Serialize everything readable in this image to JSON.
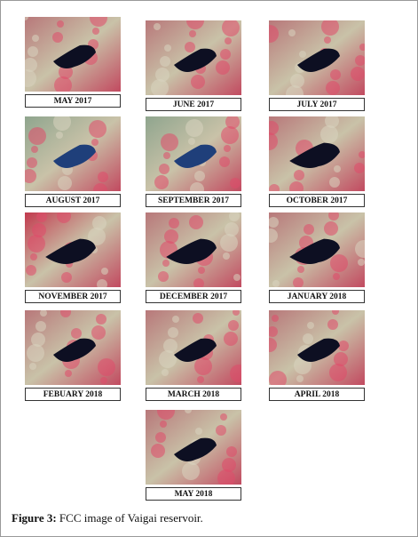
{
  "figure": {
    "panels": [
      {
        "label": "MAY 2017"
      },
      {
        "label": "JUNE 2017"
      },
      {
        "label": "JULY 2017"
      },
      {
        "label": "AUGUST 2017"
      },
      {
        "label": "SEPTEMBER 2017"
      },
      {
        "label": "OCTOBER 2017"
      },
      {
        "label": "NOVEMBER 2017"
      },
      {
        "label": "DECEMBER 2017"
      },
      {
        "label": "JANUARY 2018"
      },
      {
        "label": "FEBUARY 2018"
      },
      {
        "label": "MARCH 2018"
      },
      {
        "label": "APRIL 2018"
      },
      {
        "label": "MAY 2018"
      }
    ],
    "caption": {
      "label": "Figure 3:",
      "text": "FCC image of Vaigai reservoir."
    }
  }
}
